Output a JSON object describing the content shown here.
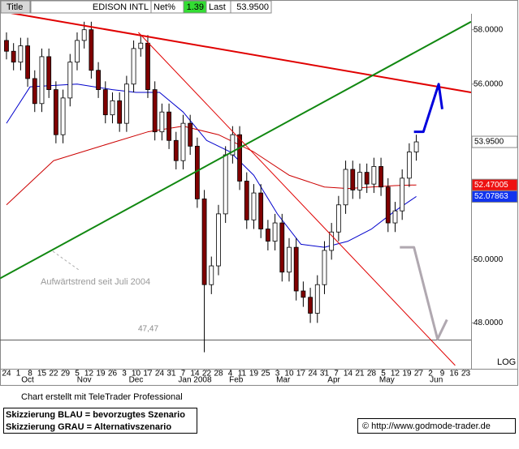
{
  "header": {
    "title_tab": "Title",
    "symbol": "EDISON INTL",
    "net_label": "Net%",
    "net_value": 1.39,
    "last_label": "Last",
    "last_value": "53.9500"
  },
  "chart_data": {
    "type": "candlestick",
    "log_scale": true,
    "log_label": "LOG",
    "xlim": [
      -0.55,
      39.45
    ],
    "ylim": [
      46.6,
      58.6
    ],
    "yticks": [
      {
        "value": 58,
        "label": "58.0000"
      },
      {
        "value": 56,
        "label": "56.0000"
      },
      {
        "value": 50,
        "label": "50.0000"
      },
      {
        "value": 48,
        "label": "48.0000"
      }
    ],
    "xticks": [
      {
        "value": 0,
        "label": "24"
      },
      {
        "value": 1,
        "label": "1"
      },
      {
        "value": 2,
        "label": "8"
      },
      {
        "value": 3,
        "label": "15"
      },
      {
        "value": 4,
        "label": "22"
      },
      {
        "value": 5,
        "label": "29"
      },
      {
        "value": 6,
        "label": "5"
      },
      {
        "value": 7,
        "label": "12"
      },
      {
        "value": 8,
        "label": "19"
      },
      {
        "value": 9,
        "label": "26"
      },
      {
        "value": 10,
        "label": "3"
      },
      {
        "value": 11,
        "label": "10"
      },
      {
        "value": 12,
        "label": "17"
      },
      {
        "value": 13,
        "label": "24"
      },
      {
        "value": 14,
        "label": "31"
      },
      {
        "value": 15,
        "label": "7"
      },
      {
        "value": 16,
        "label": "14"
      },
      {
        "value": 17,
        "label": "22"
      },
      {
        "value": 18,
        "label": "28"
      },
      {
        "value": 19,
        "label": "4"
      },
      {
        "value": 20,
        "label": "11"
      },
      {
        "value": 21,
        "label": "19"
      },
      {
        "value": 22,
        "label": "25"
      },
      {
        "value": 23,
        "label": "3"
      },
      {
        "value": 24,
        "label": "10"
      },
      {
        "value": 25,
        "label": "17"
      },
      {
        "value": 26,
        "label": "24"
      },
      {
        "value": 27,
        "label": "31"
      },
      {
        "value": 28,
        "label": "7"
      },
      {
        "value": 29,
        "label": "14"
      },
      {
        "value": 30,
        "label": "21"
      },
      {
        "value": 31,
        "label": "28"
      },
      {
        "value": 32,
        "label": "5"
      },
      {
        "value": 33,
        "label": "12"
      },
      {
        "value": 34,
        "label": "19"
      },
      {
        "value": 35,
        "label": "27"
      },
      {
        "value": 36,
        "label": "2"
      },
      {
        "value": 37,
        "label": "9"
      },
      {
        "value": 38,
        "label": "16"
      },
      {
        "value": 39,
        "label": "23"
      }
    ],
    "month_ticks": [
      {
        "value": 1.8,
        "label": "Oct"
      },
      {
        "value": 6.6,
        "label": "Nov"
      },
      {
        "value": 11,
        "label": "Dec"
      },
      {
        "value": 16,
        "label": "Jan 2008"
      },
      {
        "value": 19.5,
        "label": "Feb"
      },
      {
        "value": 23.5,
        "label": "Mar"
      },
      {
        "value": 27.8,
        "label": "Apr"
      },
      {
        "value": 32.3,
        "label": "May"
      },
      {
        "value": 36.5,
        "label": "Jun"
      }
    ],
    "up_color": "#ffffff",
    "down_color": "#800000",
    "x": [
      0,
      0.6,
      1.2,
      1.8,
      2.4,
      3,
      3.6,
      4.2,
      4.8,
      5.4,
      6,
      6.6,
      7.2,
      7.8,
      8.4,
      9,
      9.6,
      10.2,
      10.8,
      11.4,
      12,
      12.6,
      13.2,
      13.8,
      14.4,
      15,
      15.6,
      16.2,
      16.8,
      17.4,
      18,
      18.6,
      19.2,
      19.8,
      20.4,
      21,
      21.6,
      22.2,
      22.8,
      23.4,
      24,
      24.6,
      25.2,
      25.8,
      26.4,
      27,
      27.6,
      28.2,
      28.8,
      29.4,
      30,
      30.6,
      31.2,
      31.8,
      32.4,
      33,
      33.6,
      34.2,
      34.8
    ],
    "open": [
      57.6,
      57.2,
      56.8,
      57.4,
      56.2,
      55.3,
      57.0,
      55.8,
      54.2,
      55.5,
      56.8,
      57.6,
      58.0,
      56.5,
      55.8,
      54.9,
      55.4,
      54.6,
      56.0,
      57.3,
      57.5,
      55.8,
      54.3,
      55.0,
      54.0,
      53.3,
      54.6,
      53.8,
      52.0,
      49.2,
      49.8,
      51.5,
      53.5,
      54.2,
      52.6,
      51.3,
      52.2,
      51.0,
      50.6,
      51.2,
      49.6,
      50.4,
      49.0,
      48.8,
      48.3,
      49.2,
      50.3,
      50.9,
      51.8,
      53.0,
      52.3,
      52.9,
      52.5,
      53.1,
      52.4,
      51.2,
      51.6,
      52.7,
      53.6
    ],
    "high": [
      57.9,
      57.5,
      57.7,
      57.7,
      56.5,
      57.3,
      57.3,
      56.1,
      55.8,
      57.1,
      57.9,
      58.3,
      58.3,
      56.8,
      56.1,
      55.7,
      55.7,
      56.3,
      57.6,
      57.8,
      57.8,
      56.1,
      55.3,
      55.3,
      54.3,
      54.9,
      54.9,
      54.1,
      52.3,
      50.1,
      51.8,
      53.8,
      54.5,
      54.5,
      52.9,
      52.5,
      52.5,
      51.3,
      51.5,
      51.5,
      50.7,
      50.7,
      49.3,
      49.1,
      49.5,
      50.6,
      51.2,
      52.1,
      53.3,
      53.3,
      53.2,
      53.2,
      53.4,
      53.4,
      52.7,
      51.9,
      53.0,
      53.9,
      54.2
    ],
    "low": [
      56.9,
      56.5,
      56.5,
      55.9,
      55.0,
      55.0,
      55.5,
      53.9,
      53.9,
      55.2,
      56.5,
      57.3,
      56.2,
      55.5,
      54.6,
      54.6,
      54.3,
      54.3,
      55.7,
      57.0,
      55.5,
      54.0,
      54.0,
      53.7,
      53.0,
      53.0,
      53.5,
      51.7,
      47.1,
      48.9,
      49.5,
      51.2,
      53.2,
      52.3,
      51.0,
      51.0,
      50.7,
      50.3,
      50.3,
      49.3,
      49.3,
      48.7,
      48.5,
      48.0,
      48.0,
      48.9,
      50.0,
      50.6,
      51.5,
      52.0,
      52.0,
      52.2,
      52.2,
      52.1,
      50.9,
      50.9,
      51.3,
      52.4,
      53.3
    ],
    "close": [
      57.2,
      56.8,
      57.4,
      56.2,
      55.3,
      57.0,
      55.8,
      54.2,
      55.5,
      56.8,
      57.6,
      58.0,
      56.5,
      55.8,
      54.9,
      55.4,
      54.6,
      56.0,
      57.3,
      57.5,
      55.8,
      54.3,
      55.0,
      54.0,
      53.3,
      54.6,
      53.8,
      52.0,
      49.2,
      49.8,
      51.5,
      53.5,
      54.2,
      52.6,
      51.3,
      52.2,
      51.0,
      50.6,
      51.2,
      49.6,
      50.4,
      49.0,
      48.8,
      48.3,
      49.2,
      50.3,
      50.9,
      51.8,
      53.0,
      52.3,
      52.9,
      52.5,
      53.1,
      52.4,
      51.2,
      51.6,
      52.7,
      53.6,
      53.95
    ],
    "series": [
      {
        "color": "#0000cc",
        "x": [
          0,
          2,
          6,
          9,
          11,
          13,
          15,
          17,
          19,
          21,
          23,
          25,
          27,
          29,
          31,
          33,
          34.8
        ],
        "values": [
          54.6,
          55.9,
          56.0,
          55.8,
          55.7,
          55.7,
          55.0,
          54.0,
          53.6,
          52.8,
          51.5,
          50.5,
          50.4,
          50.6,
          51.0,
          51.6,
          52.08
        ]
      },
      {
        "color": "#cc0000",
        "x": [
          0,
          4,
          8,
          12,
          15,
          18,
          21,
          24,
          27,
          29,
          31,
          33,
          34.8
        ],
        "values": [
          51.8,
          53.3,
          53.8,
          54.3,
          54.5,
          54.2,
          53.6,
          52.8,
          52.4,
          52.35,
          52.4,
          52.45,
          52.47
        ]
      }
    ],
    "trend_lines": [
      {
        "color": "#e00000",
        "width": 2,
        "x": [
          -0.55,
          39.45
        ],
        "values": [
          58.7,
          55.7
        ]
      },
      {
        "color": "#118811",
        "width": 2,
        "x": [
          -0.55,
          39.45
        ],
        "values": [
          49.4,
          58.3
        ]
      },
      {
        "color": "#e00000",
        "width": 1,
        "x": [
          11.2,
          38.1
        ],
        "values": [
          57.9,
          46.7
        ]
      },
      {
        "color": "#0000dd",
        "width": 3,
        "x": [
          34.6,
          35.4,
          36.7,
          37.0
        ],
        "values": [
          54.3,
          54.3,
          56.0,
          55.1
        ]
      },
      {
        "color": "#b0a8b0",
        "width": 3,
        "x": [
          33.4,
          34.6,
          36.6,
          37.4
        ],
        "values": [
          50.4,
          50.4,
          47.5,
          48.1
        ]
      }
    ],
    "support_line": {
      "value": 47.47,
      "label": "47,47"
    },
    "trend_annotation": "Aufwärtstrend seit Juli 2004",
    "price_markers": [
      {
        "value": 53.95,
        "label": "53.9500",
        "color": "#ffffff",
        "text_color": "#000000"
      },
      {
        "value": 52.47005,
        "label": "52.47005",
        "color": "#ee1111",
        "text_color": "#ffffff"
      },
      {
        "value": 52.07863,
        "label": "52.07863",
        "color": "#1133ee",
        "text_color": "#ffffff"
      }
    ]
  },
  "footer": {
    "credit": "Chart erstellt mit TeleTrader Professional",
    "legend_blue": "Skizzierung BLAU = bevorzugtes Szenario",
    "legend_grey": "Skizzierung GRAU = Alternativszenario",
    "source": "© http://www.godmode-trader.de"
  }
}
